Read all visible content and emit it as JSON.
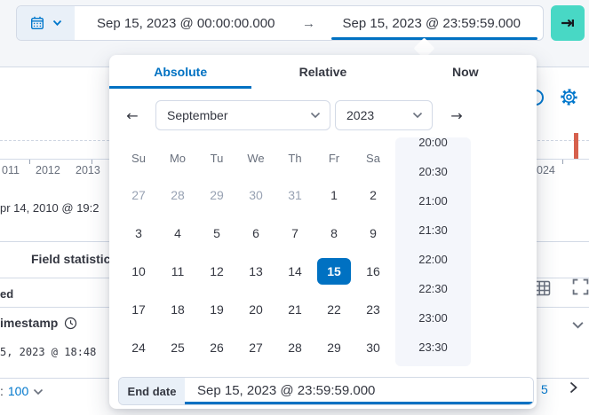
{
  "colors": {
    "primary": "#0071c2",
    "link_blue": "#0077cc",
    "accent_teal": "#48d8c5",
    "danger_red": "#d6604d",
    "border_gray": "#d3dae6",
    "text": "#343741",
    "muted": "#98a2b3"
  },
  "top_bar": {
    "calendar_icon": "calendar-icon",
    "quick_select_chevron": "chevron-down-icon",
    "start_date": "Sep 15, 2023 @ 00:00:00.000",
    "range_arrow": "→",
    "end_date": "Sep 15, 2023 @ 23:59:59.000",
    "apply_icon": "⇥"
  },
  "popover": {
    "tabs": [
      {
        "label": "Absolute",
        "active": true
      },
      {
        "label": "Relative",
        "active": false
      },
      {
        "label": "Now",
        "active": false
      }
    ],
    "nav": {
      "prev": "←",
      "next": "→",
      "month": "September",
      "year": "2023"
    },
    "calendar": {
      "weekdays": [
        "Su",
        "Mo",
        "Tu",
        "We",
        "Th",
        "Fr",
        "Sa"
      ],
      "weeks": [
        [
          {
            "t": "27",
            "m": 1
          },
          {
            "t": "28",
            "m": 1
          },
          {
            "t": "29",
            "m": 1
          },
          {
            "t": "30",
            "m": 1
          },
          {
            "t": "31",
            "m": 1
          },
          {
            "t": "1"
          },
          {
            "t": "2"
          }
        ],
        [
          {
            "t": "3"
          },
          {
            "t": "4"
          },
          {
            "t": "5"
          },
          {
            "t": "6"
          },
          {
            "t": "7"
          },
          {
            "t": "8"
          },
          {
            "t": "9"
          }
        ],
        [
          {
            "t": "10"
          },
          {
            "t": "11"
          },
          {
            "t": "12"
          },
          {
            "t": "13"
          },
          {
            "t": "14"
          },
          {
            "t": "15",
            "s": 1
          },
          {
            "t": "16"
          }
        ],
        [
          {
            "t": "17"
          },
          {
            "t": "18"
          },
          {
            "t": "19"
          },
          {
            "t": "20"
          },
          {
            "t": "21"
          },
          {
            "t": "22"
          },
          {
            "t": "23"
          }
        ],
        [
          {
            "t": "24"
          },
          {
            "t": "25"
          },
          {
            "t": "26"
          },
          {
            "t": "27"
          },
          {
            "t": "28"
          },
          {
            "t": "29"
          },
          {
            "t": "30"
          }
        ]
      ],
      "selected_day": "15"
    },
    "times": [
      "20:00",
      "20:30",
      "21:00",
      "21:30",
      "22:00",
      "22:30",
      "23:00",
      "23:30"
    ],
    "end_date": {
      "label": "End date",
      "value": "Sep 15, 2023 @ 23:59:59.000"
    }
  },
  "background": {
    "axis_labels_left": [
      "011",
      "2012",
      "2013"
    ],
    "axis_label_right": "024",
    "histogram_caption_fragment": "pr 14, 2010 @ 19:2",
    "field_statistics_tab": "Field statistics",
    "toolbar_fragment": "ed",
    "column_header_fragment": "imestamp",
    "column_header_icon": "clock-icon",
    "cell_fragment": "5, 2023 @ 18:48",
    "rows_per_page_fragment": ":",
    "rows_per_page_value": "100",
    "page_number": "5",
    "icons": [
      "refresh-partial-icon",
      "gear-icon",
      "grid-options-icon",
      "fullscreen-icon",
      "chevron-down-icon",
      "chevron-right-icon"
    ]
  }
}
